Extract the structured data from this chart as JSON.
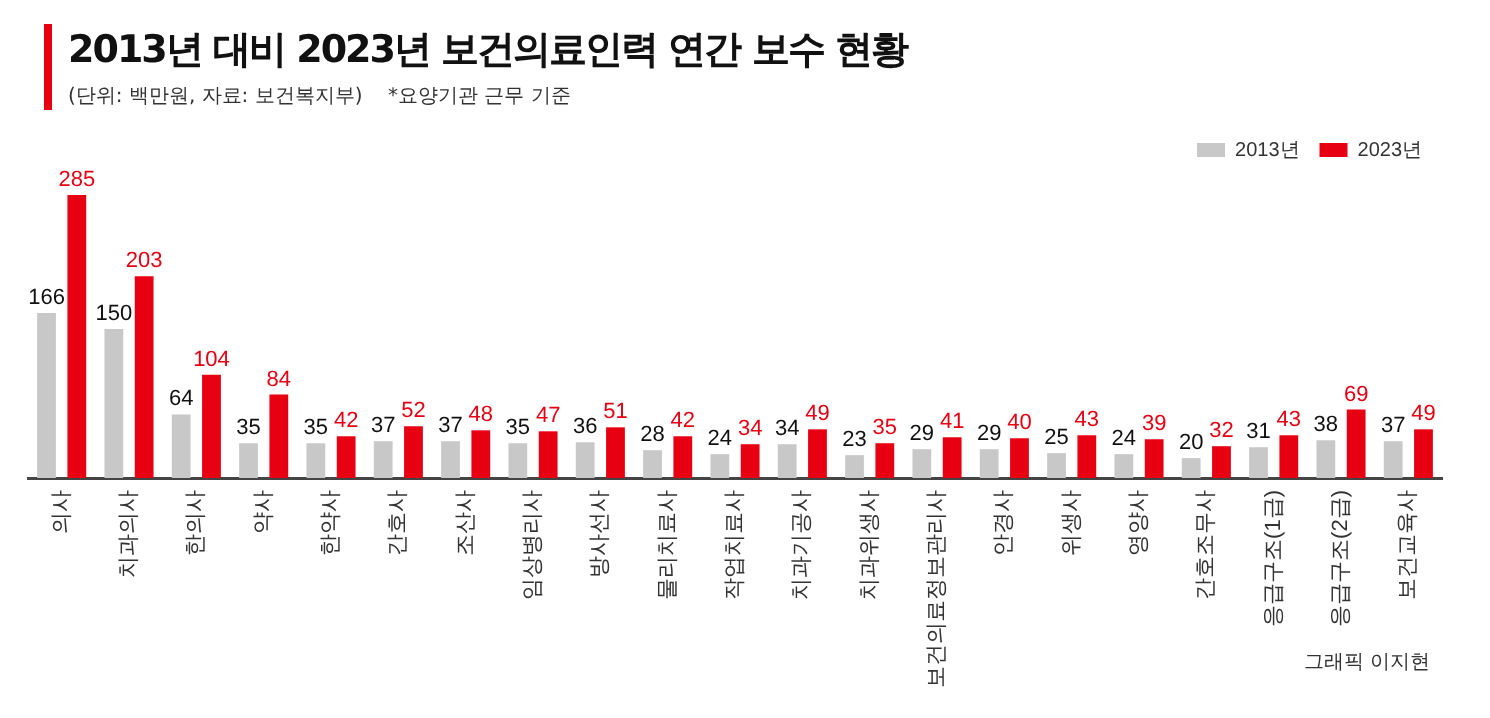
{
  "chart_data": {
    "type": "bar",
    "title": "2013년 대비 2023년 보건의료인력 연간 보수 현황",
    "subtitle": "(단위: 백만원, 자료: 보건복지부)    *요양기관 근무 기준",
    "categories": [
      "의사",
      "치과의사",
      "한의사",
      "약사",
      "한약사",
      "간호사",
      "조산사",
      "임상병리사",
      "방사선사",
      "물리치료사",
      "작업치료사",
      "치과기공사",
      "치과위생사",
      "보건의료정보관리사",
      "안경사",
      "위생사",
      "영양사",
      "간호조무사",
      "응급구조(1급)",
      "응급구조(2급)",
      "보건교육사"
    ],
    "series": [
      {
        "name": "2013년",
        "color": "#c8c8c8",
        "values": [
          166,
          150,
          64,
          35,
          35,
          37,
          37,
          35,
          36,
          28,
          24,
          34,
          23,
          29,
          29,
          25,
          24,
          20,
          31,
          38,
          37
        ]
      },
      {
        "name": "2023년",
        "color": "#e60012",
        "values": [
          285,
          203,
          104,
          84,
          42,
          52,
          48,
          47,
          51,
          42,
          34,
          49,
          35,
          41,
          40,
          43,
          39,
          32,
          43,
          69,
          49
        ]
      }
    ],
    "data_labels": true,
    "grid": false,
    "legend": "top right",
    "tick_labels": "x",
    "annotations": [
      "그래픽 이지현"
    ]
  }
}
